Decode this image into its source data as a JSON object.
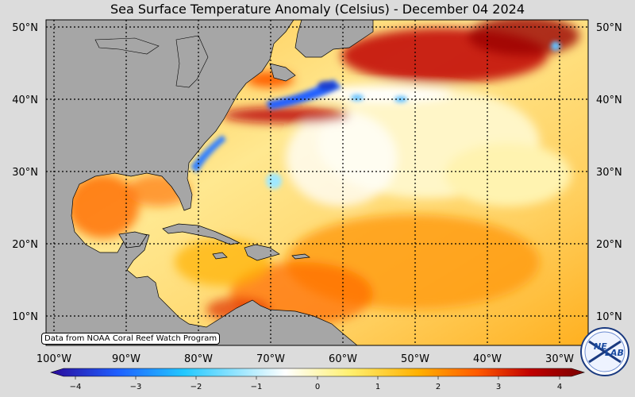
{
  "title": "Sea Surface Temperature Anomaly (Celsius) - December 04 2024",
  "credit": "Data from NOAA Coral Reef Watch Program",
  "logo_text_left": "NE",
  "logo_text_right": "LAB",
  "lat_labels": [
    "50°N",
    "40°N",
    "30°N",
    "20°N",
    "10°N"
  ],
  "lon_labels": [
    "100°W",
    "90°W",
    "80°W",
    "70°W",
    "60°W",
    "50°W",
    "40°W",
    "30°W"
  ],
  "colorbar": {
    "ticks": [
      "−4",
      "−3",
      "−2",
      "−1",
      "0",
      "1",
      "2",
      "3",
      "4"
    ],
    "colors": [
      "#2a0a9a",
      "#1f5fff",
      "#22c8ff",
      "#ffffff",
      "#fff070",
      "#ffb000",
      "#ff5a00",
      "#c00000",
      "#7a0000"
    ]
  },
  "colors": {
    "land": "#a6a6a6",
    "background": "#dcdcdc"
  }
}
